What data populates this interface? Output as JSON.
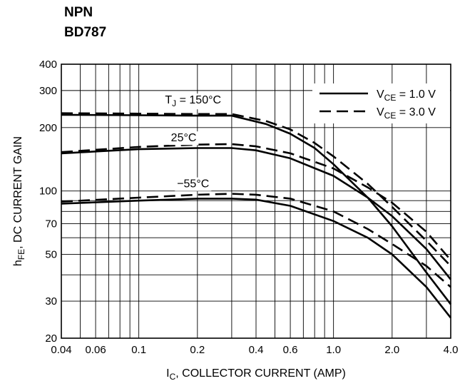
{
  "header": {
    "line1": "NPN",
    "line2": "BD787"
  },
  "chart_data": {
    "type": "line",
    "x_scale": "log",
    "y_scale": "log",
    "xlim": [
      0.04,
      4.0
    ],
    "ylim": [
      20,
      400
    ],
    "xlabel": "I_C, COLLECTOR CURRENT (AMP)",
    "ylabel": "h_FE, DC CURRENT GAIN",
    "x_ticks": [
      {
        "value": 0.04,
        "label": "0.04"
      },
      {
        "value": 0.06,
        "label": "0.06"
      },
      {
        "value": 0.1,
        "label": "0.1"
      },
      {
        "value": 0.2,
        "label": "0.2"
      },
      {
        "value": 0.4,
        "label": "0.4"
      },
      {
        "value": 0.6,
        "label": "0.6"
      },
      {
        "value": 1.0,
        "label": "1.0"
      },
      {
        "value": 2.0,
        "label": "2.0"
      },
      {
        "value": 4.0,
        "label": "4.0"
      }
    ],
    "y_ticks": [
      {
        "value": 20,
        "label": "20"
      },
      {
        "value": 30,
        "label": "30"
      },
      {
        "value": 50,
        "label": "50"
      },
      {
        "value": 70,
        "label": "70"
      },
      {
        "value": 100,
        "label": "100"
      },
      {
        "value": 200,
        "label": "200"
      },
      {
        "value": 300,
        "label": "300"
      },
      {
        "value": 400,
        "label": "400"
      }
    ],
    "grid": true,
    "legend": [
      {
        "label": "V_CE = 1.0 V",
        "style": "solid"
      },
      {
        "label": "V_CE = 3.0 V",
        "style": "dashed"
      }
    ],
    "legend_position": "top-right",
    "annotations": [
      {
        "text": "T_J = 150°C",
        "x": 0.19,
        "y": 260
      },
      {
        "text": "25°C",
        "x": 0.17,
        "y": 172
      },
      {
        "text": "−55°C",
        "x": 0.19,
        "y": 104
      }
    ],
    "series": [
      {
        "style": "solid",
        "points": [
          [
            0.04,
            151
          ],
          [
            0.1,
            158
          ],
          [
            0.2,
            160
          ],
          [
            0.3,
            160
          ],
          [
            0.4,
            156
          ],
          [
            0.6,
            143
          ],
          [
            1.0,
            118
          ],
          [
            1.5,
            93
          ],
          [
            2.0,
            76
          ],
          [
            3.0,
            53
          ],
          [
            4.0,
            38
          ]
        ]
      },
      {
        "style": "solid",
        "points": [
          [
            0.04,
            230
          ],
          [
            0.1,
            229
          ],
          [
            0.2,
            228
          ],
          [
            0.3,
            228
          ],
          [
            0.45,
            208
          ],
          [
            0.6,
            187
          ],
          [
            0.8,
            160
          ],
          [
            1.0,
            134
          ],
          [
            1.5,
            93
          ],
          [
            2.0,
            68
          ],
          [
            3.0,
            41
          ],
          [
            4.0,
            29
          ]
        ]
      },
      {
        "style": "solid",
        "points": [
          [
            0.04,
            87
          ],
          [
            0.1,
            90
          ],
          [
            0.2,
            92
          ],
          [
            0.3,
            92
          ],
          [
            0.4,
            91
          ],
          [
            0.6,
            85
          ],
          [
            1.0,
            72
          ],
          [
            1.5,
            60
          ],
          [
            2.0,
            50
          ],
          [
            3.0,
            35
          ],
          [
            4.0,
            25
          ]
        ]
      },
      {
        "style": "dashed",
        "points": [
          [
            0.04,
            153
          ],
          [
            0.1,
            162
          ],
          [
            0.2,
            166
          ],
          [
            0.3,
            167
          ],
          [
            0.4,
            163
          ],
          [
            0.6,
            151
          ],
          [
            1.0,
            128
          ],
          [
            1.5,
            104
          ],
          [
            2.0,
            88
          ],
          [
            3.0,
            64
          ],
          [
            4.0,
            47
          ]
        ]
      },
      {
        "style": "dashed",
        "points": [
          [
            0.04,
            234
          ],
          [
            0.1,
            233
          ],
          [
            0.2,
            232
          ],
          [
            0.3,
            232
          ],
          [
            0.45,
            215
          ],
          [
            0.6,
            196
          ],
          [
            0.8,
            169
          ],
          [
            1.0,
            146
          ],
          [
            1.5,
            108
          ],
          [
            2.0,
            84
          ],
          [
            3.0,
            58
          ],
          [
            4.0,
            44
          ]
        ]
      },
      {
        "style": "dashed",
        "points": [
          [
            0.04,
            89
          ],
          [
            0.1,
            93
          ],
          [
            0.2,
            96
          ],
          [
            0.3,
            97
          ],
          [
            0.4,
            96
          ],
          [
            0.6,
            92
          ],
          [
            1.0,
            80
          ],
          [
            1.5,
            66
          ],
          [
            2.0,
            56
          ],
          [
            3.0,
            44
          ],
          [
            4.0,
            35
          ]
        ]
      }
    ]
  }
}
